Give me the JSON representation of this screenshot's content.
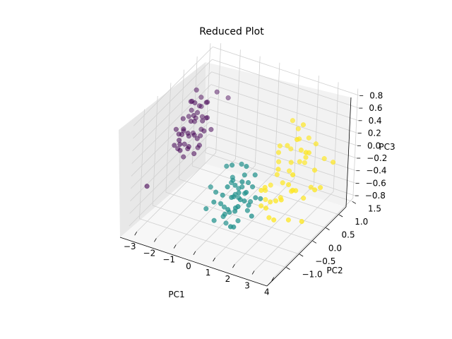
{
  "chart_data": {
    "type": "scatter",
    "title": "Reduced Plot",
    "xlabel": "PC1",
    "ylabel": "PC2",
    "zlabel": "PC3",
    "xlim": [
      -3.4,
      4.1
    ],
    "ylim": [
      -1.4,
      1.6
    ],
    "zlim": [
      -0.85,
      0.9
    ],
    "xticks": [
      -3,
      -2,
      -1,
      0,
      1,
      2,
      3,
      4
    ],
    "yticks": [
      -1.0,
      -0.5,
      0.0,
      0.5,
      1.0,
      1.5
    ],
    "zticks": [
      -0.8,
      -0.6,
      -0.4,
      -0.2,
      0.0,
      0.2,
      0.4,
      0.6,
      0.8
    ],
    "xtick_labels": [
      "−3",
      "−2",
      "−1",
      "0",
      "1",
      "2",
      "3",
      "4"
    ],
    "ytick_labels": [
      "−1.0",
      "−0.5",
      "0.0",
      "0.5",
      "1.0",
      "1.5"
    ],
    "ztick_labels": [
      "−0.8",
      "−0.6",
      "−0.4",
      "−0.2",
      "0.0",
      "0.2",
      "0.4",
      "0.6",
      "0.8"
    ],
    "grid": true,
    "colors": [
      "#440154",
      "#21918c",
      "#fde725"
    ],
    "series": [
      {
        "points": [
          [
            -2.7,
            0.32,
            0.4
          ],
          [
            -2.5,
            0.1,
            0.1
          ],
          [
            -2.6,
            -0.2,
            0.15
          ],
          [
            -2.4,
            0.5,
            0.05
          ],
          [
            -2.8,
            0.3,
            0.3
          ],
          [
            -2.3,
            -0.1,
            0.25
          ],
          [
            -2.2,
            0.3,
            -0.1
          ],
          [
            -2.5,
            0.6,
            0.2
          ],
          [
            -2.4,
            -0.3,
            0.05
          ],
          [
            -2.6,
            0.0,
            -0.2
          ],
          [
            -2.2,
            0.2,
            0.05
          ],
          [
            -2.7,
            0.7,
            0.3
          ],
          [
            -2.9,
            -0.1,
            0.25
          ],
          [
            -2.5,
            0.4,
            0.35
          ],
          [
            -2.3,
            0.1,
            0.45
          ],
          [
            -2.1,
            0.0,
            0.2
          ],
          [
            -2.6,
            0.2,
            0.6
          ],
          [
            -2.4,
            -0.2,
            0.35
          ],
          [
            -2.8,
            0.5,
            -0.05
          ],
          [
            -2.2,
            0.5,
            0.5
          ],
          [
            -2.7,
            -0.3,
            0.1
          ],
          [
            -2.5,
            0.8,
            0.1
          ],
          [
            -2.3,
            0.4,
            0.0
          ],
          [
            -2.9,
            0.2,
            0.1
          ],
          [
            -2.6,
            0.6,
            0.5
          ],
          [
            -2.4,
            0.0,
            -0.05
          ],
          [
            -2.1,
            0.3,
            0.3
          ],
          [
            -2.7,
            0.0,
            0.4
          ],
          [
            -2.3,
            -0.4,
            0.2
          ],
          [
            -2.5,
            0.3,
            0.25
          ],
          [
            -2.8,
            0.4,
            0.5
          ],
          [
            -2.2,
            0.1,
            -0.15
          ],
          [
            -2.6,
            -0.1,
            0.2
          ],
          [
            -2.4,
            0.7,
            0.4
          ],
          [
            -2.0,
            0.3,
            0.15
          ],
          [
            -2.9,
            0.0,
            -0.1
          ],
          [
            -2.5,
            -0.3,
            0.3
          ],
          [
            -2.3,
            0.6,
            0.2
          ],
          [
            -2.7,
            0.1,
            -0.05
          ],
          [
            -2.4,
            0.2,
            0.6
          ],
          [
            -3.1,
            -1.0,
            -0.3
          ],
          [
            -2.0,
            1.2,
            0.3
          ],
          [
            -2.2,
            0.9,
            0.5
          ],
          [
            -1.9,
            0.5,
            0.1
          ],
          [
            -2.6,
            0.4,
            0.7
          ],
          [
            -2.1,
            -0.2,
            0.1
          ],
          [
            -2.8,
            0.7,
            0.3
          ],
          [
            -2.4,
            0.4,
            -0.2
          ],
          [
            -2.3,
            0.0,
            0.4
          ],
          [
            -2.7,
            0.5,
            0.2
          ]
        ]
      },
      {
        "points": [
          [
            -0.2,
            -0.9,
            -0.4
          ],
          [
            0.6,
            -0.6,
            -0.5
          ],
          [
            1.0,
            -0.5,
            -0.3
          ],
          [
            0.3,
            -0.3,
            -0.1
          ],
          [
            0.8,
            -0.7,
            -0.2
          ],
          [
            1.3,
            -0.4,
            -0.4
          ],
          [
            0.5,
            -0.2,
            -0.3
          ],
          [
            1.1,
            -0.8,
            -0.6
          ],
          [
            0.2,
            -0.5,
            -0.5
          ],
          [
            0.9,
            -0.3,
            0.0
          ],
          [
            1.4,
            -0.6,
            -0.1
          ],
          [
            0.0,
            -0.7,
            -0.2
          ],
          [
            0.7,
            -0.1,
            -0.4
          ],
          [
            1.2,
            -0.2,
            -0.2
          ],
          [
            0.4,
            -0.8,
            -0.3
          ],
          [
            1.5,
            -0.3,
            -0.3
          ],
          [
            0.1,
            -0.4,
            0.1
          ],
          [
            0.6,
            -0.9,
            -0.1
          ],
          [
            1.0,
            -0.1,
            -0.5
          ],
          [
            0.3,
            -0.6,
            -0.6
          ],
          [
            1.3,
            -0.7,
            0.1
          ],
          [
            0.8,
            -0.4,
            -0.7
          ],
          [
            0.5,
            -0.5,
            0.2
          ],
          [
            1.1,
            -0.3,
            -0.1
          ],
          [
            0.2,
            -0.2,
            -0.2
          ],
          [
            0.9,
            -0.6,
            -0.4
          ],
          [
            1.6,
            -0.5,
            -0.5
          ],
          [
            0.4,
            -0.3,
            -0.4
          ],
          [
            0.7,
            -0.8,
            0.0
          ],
          [
            1.2,
            -0.5,
            -0.3
          ],
          [
            -0.4,
            -0.6,
            -0.2
          ],
          [
            0.0,
            -0.1,
            -0.3
          ],
          [
            1.4,
            -0.9,
            -0.2
          ],
          [
            0.6,
            -0.2,
            0.1
          ],
          [
            1.0,
            -0.7,
            -0.4
          ],
          [
            0.3,
            -1.0,
            -0.2
          ],
          [
            0.8,
            -0.3,
            -0.2
          ],
          [
            1.5,
            -0.1,
            -0.4
          ],
          [
            0.1,
            -0.8,
            -0.6
          ],
          [
            1.1,
            -0.4,
            0.2
          ],
          [
            0.5,
            -0.7,
            -0.5
          ],
          [
            0.9,
            -0.9,
            -0.3
          ],
          [
            1.3,
            -0.2,
            0.0
          ],
          [
            0.2,
            -0.4,
            -0.8
          ],
          [
            0.7,
            -0.5,
            -0.1
          ],
          [
            1.2,
            -1.0,
            -0.5
          ],
          [
            0.4,
            -0.1,
            -0.5
          ],
          [
            1.0,
            -0.2,
            -0.6
          ],
          [
            0.6,
            -0.4,
            -0.3
          ],
          [
            0.9,
            -0.5,
            -0.2
          ]
        ]
      },
      {
        "points": [
          [
            1.8,
            0.3,
            0.2
          ],
          [
            2.5,
            0.2,
            -0.2
          ],
          [
            2.2,
            0.5,
            0.0
          ],
          [
            1.6,
            0.0,
            -0.3
          ],
          [
            2.8,
            0.6,
            0.1
          ],
          [
            2.0,
            -0.1,
            -0.4
          ],
          [
            3.2,
            0.4,
            0.3
          ],
          [
            1.9,
            0.2,
            -0.1
          ],
          [
            2.4,
            -0.2,
            -0.3
          ],
          [
            2.1,
            0.8,
            0.4
          ],
          [
            3.0,
            0.1,
            -0.2
          ],
          [
            1.7,
            0.4,
            0.0
          ],
          [
            2.6,
            -0.4,
            -0.5
          ],
          [
            2.3,
            0.7,
            0.3
          ],
          [
            3.4,
            0.5,
            0.0
          ],
          [
            1.5,
            0.1,
            -0.5
          ],
          [
            2.7,
            0.3,
            0.5
          ],
          [
            2.0,
            0.6,
            -0.2
          ],
          [
            3.1,
            -0.1,
            -0.1
          ],
          [
            1.8,
            -0.3,
            -0.4
          ],
          [
            2.9,
            0.9,
            0.2
          ],
          [
            2.2,
            0.0,
            0.1
          ],
          [
            3.6,
            0.6,
            -0.3
          ],
          [
            1.6,
            0.5,
            0.2
          ],
          [
            2.5,
            0.8,
            -0.1
          ],
          [
            2.1,
            -0.2,
            -0.6
          ],
          [
            3.3,
            0.2,
            0.4
          ],
          [
            1.9,
            0.7,
            0.1
          ],
          [
            2.8,
            -0.3,
            -0.2
          ],
          [
            2.4,
            0.4,
            -0.4
          ],
          [
            3.8,
            0.9,
            0.0
          ],
          [
            1.7,
            -0.1,
            -0.2
          ],
          [
            2.6,
            0.6,
            0.6
          ],
          [
            2.0,
            0.3,
            -0.5
          ],
          [
            3.0,
            0.7,
            -0.4
          ],
          [
            2.3,
            -0.5,
            -0.3
          ],
          [
            3.5,
            0.0,
            -0.6
          ],
          [
            1.8,
            0.8,
            0.5
          ],
          [
            2.7,
            0.1,
            -0.7
          ],
          [
            2.1,
            0.4,
            0.3
          ],
          [
            3.2,
            -0.2,
            0.2
          ],
          [
            1.6,
            0.2,
            -0.3
          ],
          [
            2.9,
            0.5,
            -0.5
          ],
          [
            2.4,
            1.0,
            0.2
          ],
          [
            3.7,
            0.3,
            -0.2
          ],
          [
            1.9,
            -0.4,
            -0.1
          ],
          [
            2.5,
            0.6,
            0.0
          ],
          [
            3.1,
            1.1,
            -0.1
          ],
          [
            2.2,
            0.2,
            -0.2
          ],
          [
            2.8,
            0.4,
            0.3
          ]
        ]
      }
    ]
  }
}
